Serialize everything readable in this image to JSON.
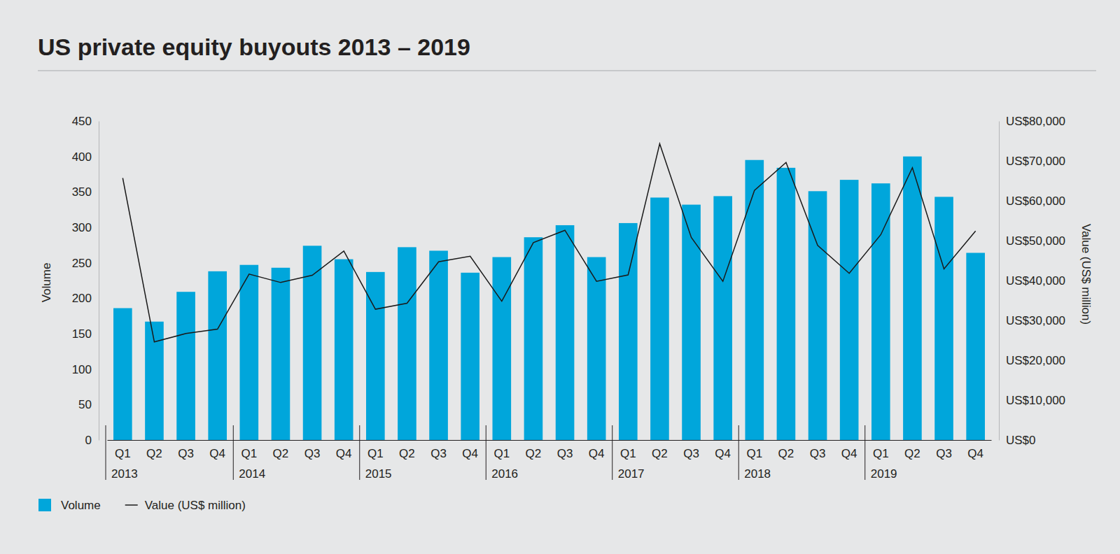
{
  "chart_data": {
    "type": "bar",
    "title": "US private equity buyouts 2013 – 2019",
    "categories": [
      "Q1",
      "Q2",
      "Q3",
      "Q4",
      "Q1",
      "Q2",
      "Q3",
      "Q4",
      "Q1",
      "Q2",
      "Q3",
      "Q4",
      "Q1",
      "Q2",
      "Q3",
      "Q4",
      "Q1",
      "Q2",
      "Q3",
      "Q4",
      "Q1",
      "Q2",
      "Q3",
      "Q4",
      "Q1",
      "Q2",
      "Q3",
      "Q4"
    ],
    "x_groups": [
      "2013",
      "2014",
      "2015",
      "2016",
      "2017",
      "2018",
      "2019"
    ],
    "y_label": "Volume",
    "y2_label": "Value (US$ million)",
    "ylim": [
      0,
      450
    ],
    "yticks": [
      0,
      50,
      100,
      150,
      200,
      250,
      300,
      350,
      400,
      450
    ],
    "y2lim": [
      0,
      80000
    ],
    "y2ticks": [
      {
        "value": 0,
        "label": "US$0"
      },
      {
        "value": 10000,
        "label": "US$10,000"
      },
      {
        "value": 20000,
        "label": "US$20,000"
      },
      {
        "value": 30000,
        "label": "US$30,000"
      },
      {
        "value": 40000,
        "label": "US$40,000"
      },
      {
        "value": 50000,
        "label": "US$50,000"
      },
      {
        "value": 60000,
        "label": "US$60,000"
      },
      {
        "value": 70000,
        "label": "US$70,000"
      },
      {
        "value": 80000,
        "label": "US$80,000"
      }
    ],
    "series": [
      {
        "name": "Volume",
        "type": "bar",
        "color": "#00a6db",
        "values": [
          186,
          167,
          209,
          238,
          247,
          243,
          274,
          255,
          237,
          272,
          267,
          236,
          258,
          286,
          303,
          258,
          306,
          342,
          332,
          344,
          395,
          384,
          351,
          367,
          362,
          400,
          343,
          264
        ]
      },
      {
        "name": "Value (US$ million)",
        "type": "line",
        "axis": "y2",
        "color": "#1a1a1a",
        "values": [
          65700,
          24600,
          26700,
          27800,
          41600,
          39500,
          41300,
          47400,
          32800,
          34300,
          44700,
          46100,
          34800,
          49500,
          52600,
          39800,
          41400,
          74300,
          50800,
          39800,
          62600,
          69600,
          48800,
          41800,
          51500,
          68300,
          42900,
          52400
        ]
      }
    ],
    "legend": "bottom-left",
    "grid": false
  }
}
